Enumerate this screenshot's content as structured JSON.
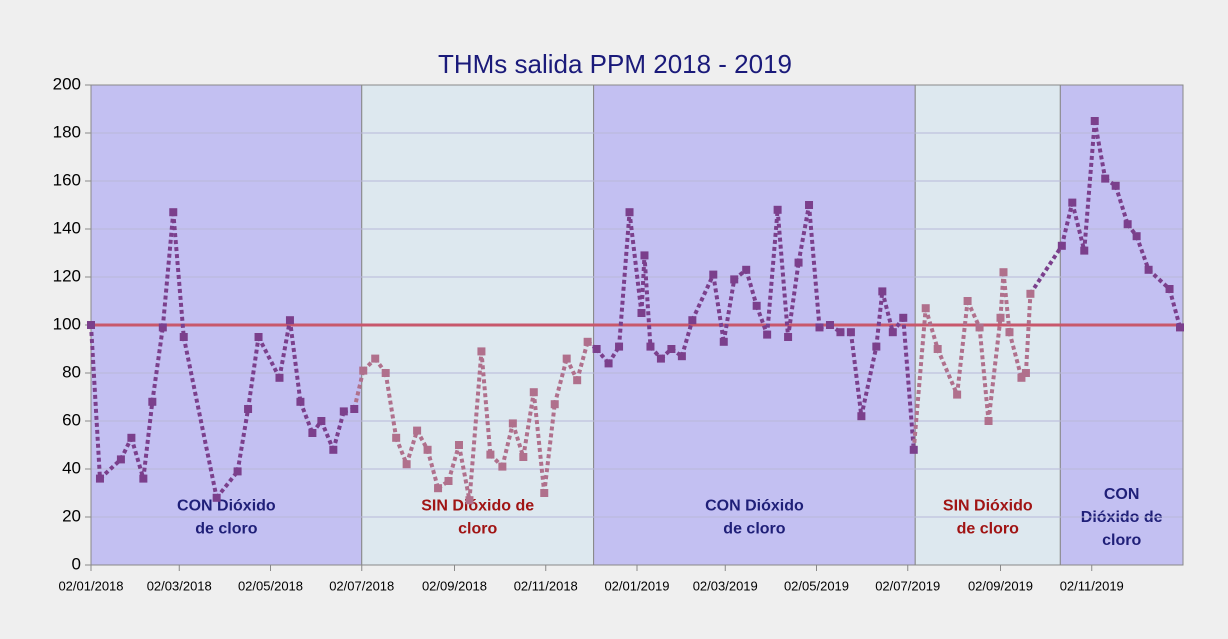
{
  "chart_data": {
    "type": "line",
    "title": "THMs salida PPM 2018 - 2019",
    "xlim": [
      "2018-01-02",
      "2020-01-02"
    ],
    "xticks": [
      {
        "value": "2018-01-02",
        "label": "02/01/2018"
      },
      {
        "value": "2018-03-02",
        "label": "02/03/2018"
      },
      {
        "value": "2018-05-02",
        "label": "02/05/2018"
      },
      {
        "value": "2018-07-02",
        "label": "02/07/2018"
      },
      {
        "value": "2018-09-02",
        "label": "02/09/2018"
      },
      {
        "value": "2018-11-02",
        "label": "02/11/2018"
      },
      {
        "value": "2019-01-02",
        "label": "02/01/2019"
      },
      {
        "value": "2019-03-02",
        "label": "02/03/2019"
      },
      {
        "value": "2019-05-02",
        "label": "02/05/2019"
      },
      {
        "value": "2019-07-02",
        "label": "02/07/2019"
      },
      {
        "value": "2019-09-02",
        "label": "02/09/2019"
      },
      {
        "value": "2019-11-02",
        "label": "02/11/2019"
      }
    ],
    "ylim": [
      0,
      200
    ],
    "yticks": [
      0,
      20,
      40,
      60,
      80,
      100,
      120,
      140,
      160,
      180,
      200
    ],
    "grid": true,
    "reference_line": {
      "value": 100,
      "color": "#c8586c"
    },
    "regions": [
      {
        "start": "2018-01-02",
        "end": "2018-07-02",
        "label": [
          "CON Dióxido",
          "de cloro"
        ],
        "color": "#c3c0f2",
        "label_color": "#1f1f78",
        "point_color": "#7b3f8c"
      },
      {
        "start": "2018-07-02",
        "end": "2018-12-04",
        "label": [
          "SIN Dióxido de",
          "cloro"
        ],
        "color": "#dde8ef",
        "label_color": "#a01414",
        "point_color": "#b0708c"
      },
      {
        "start": "2018-12-04",
        "end": "2019-07-07",
        "label": [
          "CON Dióxido",
          "de cloro"
        ],
        "color": "#c3c0f2",
        "label_color": "#1f1f78",
        "point_color": "#7b3f8c"
      },
      {
        "start": "2019-07-07",
        "end": "2019-10-12",
        "label": [
          "SIN Dióxido",
          "de cloro"
        ],
        "color": "#dde8ef",
        "label_color": "#a01414",
        "point_color": "#b0708c"
      },
      {
        "start": "2019-10-12",
        "end": "2020-01-02",
        "label": [
          "CON",
          "Dióxido de",
          "cloro"
        ],
        "color": "#c3c0f2",
        "label_color": "#1f1f78",
        "point_color": "#7b3f8c"
      }
    ],
    "x": [
      "2018-01-02",
      "2018-01-08",
      "2018-01-22",
      "2018-01-29",
      "2018-02-06",
      "2018-02-12",
      "2018-02-19",
      "2018-02-26",
      "2018-03-05",
      "2018-03-27",
      "2018-04-10",
      "2018-04-17",
      "2018-04-24",
      "2018-05-08",
      "2018-05-15",
      "2018-05-22",
      "2018-05-30",
      "2018-06-05",
      "2018-06-13",
      "2018-06-20",
      "2018-06-27",
      "2018-07-03",
      "2018-07-11",
      "2018-07-18",
      "2018-07-25",
      "2018-08-01",
      "2018-08-08",
      "2018-08-15",
      "2018-08-22",
      "2018-08-29",
      "2018-09-05",
      "2018-09-12",
      "2018-09-20",
      "2018-09-26",
      "2018-10-04",
      "2018-10-11",
      "2018-10-18",
      "2018-10-25",
      "2018-11-01",
      "2018-11-08",
      "2018-11-16",
      "2018-11-23",
      "2018-11-30",
      "2018-12-06",
      "2018-12-14",
      "2018-12-21",
      "2018-12-28",
      "2019-01-05",
      "2019-01-07",
      "2019-01-11",
      "2019-01-18",
      "2019-01-25",
      "2019-02-01",
      "2019-02-08",
      "2019-02-22",
      "2019-03-01",
      "2019-03-08",
      "2019-03-16",
      "2019-03-23",
      "2019-03-30",
      "2019-04-06",
      "2019-04-13",
      "2019-04-20",
      "2019-04-27",
      "2019-05-04",
      "2019-05-11",
      "2019-05-18",
      "2019-05-25",
      "2019-06-01",
      "2019-06-11",
      "2019-06-15",
      "2019-06-22",
      "2019-06-29",
      "2019-07-06",
      "2019-07-14",
      "2019-07-22",
      "2019-08-04",
      "2019-08-11",
      "2019-08-19",
      "2019-08-25",
      "2019-09-02",
      "2019-09-04",
      "2019-09-08",
      "2019-09-16",
      "2019-09-19",
      "2019-09-22",
      "2019-10-13",
      "2019-10-20",
      "2019-10-28",
      "2019-11-04",
      "2019-11-11",
      "2019-11-18",
      "2019-11-26",
      "2019-12-02",
      "2019-12-10",
      "2019-12-24",
      "2019-12-31"
    ],
    "values": [
      100,
      36,
      44,
      53,
      36,
      68,
      99,
      147,
      95,
      28,
      39,
      65,
      95,
      78,
      102,
      68,
      55,
      60,
      48,
      64,
      65,
      81,
      86,
      80,
      53,
      42,
      56,
      48,
      32,
      35,
      50,
      27,
      89,
      46,
      41,
      59,
      45,
      72,
      30,
      67,
      86,
      77,
      93,
      90,
      84,
      91,
      147,
      105,
      129,
      91,
      86,
      90,
      87,
      102,
      121,
      93,
      119,
      123,
      108,
      96,
      148,
      95,
      126,
      150,
      99,
      100,
      97,
      97,
      62,
      91,
      114,
      97,
      103,
      48,
      107,
      90,
      71,
      110,
      99,
      60,
      103,
      122,
      97,
      78,
      80,
      113,
      133,
      151,
      131,
      185,
      161,
      158,
      142,
      137,
      123,
      115,
      99
    ]
  }
}
